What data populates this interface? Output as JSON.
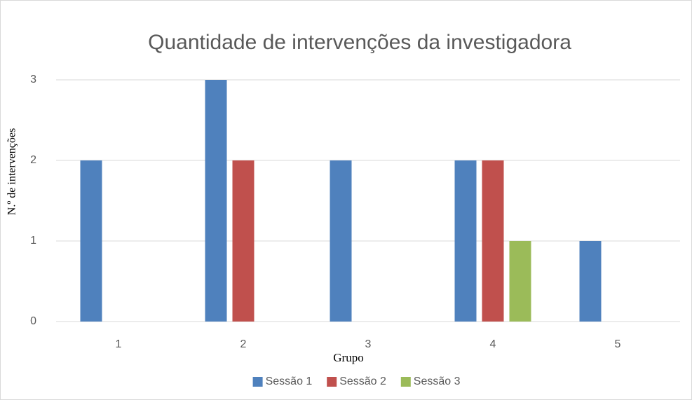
{
  "chart_data": {
    "type": "bar",
    "title": "Quantidade de intervenções da investigadora",
    "x_label": "Grupo",
    "y_label": "N.º de intervenções",
    "categories": [
      "1",
      "2",
      "3",
      "4",
      "5"
    ],
    "series": [
      {
        "name": "Sessão 1",
        "color": "#4f81bd",
        "values": [
          2,
          3,
          2,
          2,
          1
        ]
      },
      {
        "name": "Sessão 2",
        "color": "#c0504d",
        "values": [
          0,
          2,
          0,
          2,
          0
        ]
      },
      {
        "name": "Sessão 3",
        "color": "#9bbb59",
        "values": [
          0,
          0,
          0,
          1,
          0
        ]
      }
    ],
    "ylim": [
      0,
      3
    ],
    "yticks": [
      0,
      1,
      2,
      3
    ],
    "grid": true,
    "legend": "bottom"
  }
}
